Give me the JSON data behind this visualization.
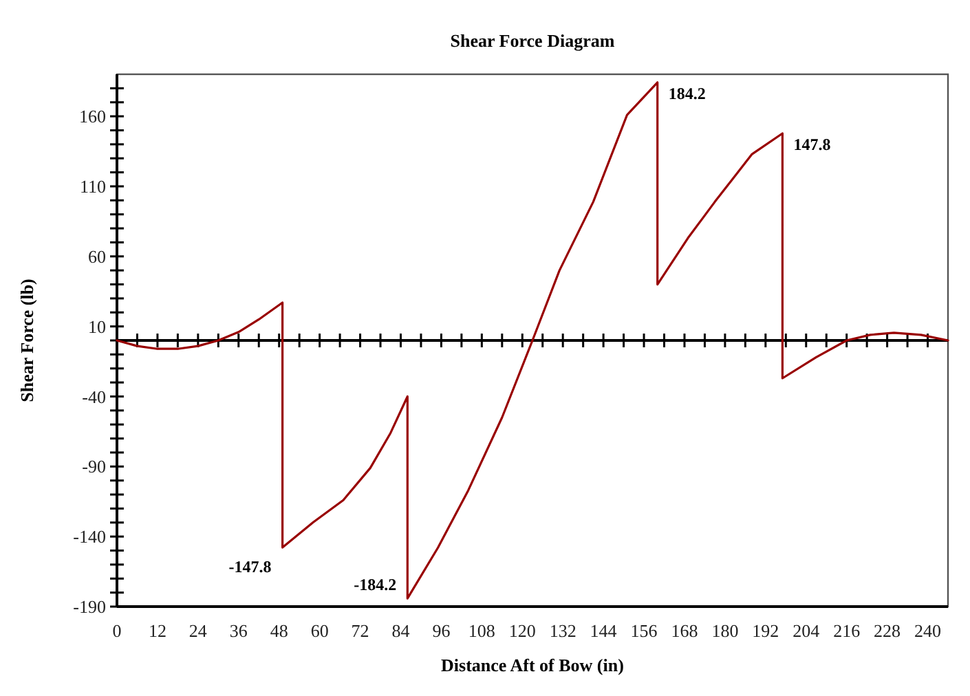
{
  "chart_data": {
    "type": "line",
    "title": "Shear Force Diagram",
    "xlabel": "Distance Aft of Bow (in)",
    "ylabel": "Shear Force (lb)",
    "x": [
      0,
      6,
      12,
      18,
      24,
      30,
      36,
      42,
      49,
      49,
      58,
      67,
      75,
      81,
      86,
      86,
      95,
      104,
      114,
      123,
      131,
      141,
      151,
      160,
      160,
      169,
      177,
      188,
      197,
      197,
      207,
      216,
      223,
      230,
      238,
      246
    ],
    "series": [
      {
        "color": "#990000",
        "values": [
          0,
          -4,
          -6,
          -6,
          -4,
          0,
          6,
          15,
          27,
          -147.8,
          -130,
          -114,
          -91,
          -66,
          -40,
          -184.2,
          -148,
          -107,
          -55,
          0,
          50,
          99,
          161,
          184.2,
          40,
          73,
          99,
          133,
          147.8,
          -27,
          -12,
          0,
          4,
          5.5,
          4,
          0
        ]
      }
    ],
    "xlim": [
      0,
      246
    ],
    "ylim": [
      -190,
      190
    ],
    "xticks": [
      0,
      {
        "value": 6,
        "label": null
      },
      12,
      {
        "value": 18,
        "label": null
      },
      24,
      {
        "value": 30,
        "label": null
      },
      36,
      {
        "value": 42,
        "label": null
      },
      48,
      {
        "value": 54,
        "label": null
      },
      60,
      {
        "value": 66,
        "label": null
      },
      72,
      {
        "value": 78,
        "label": null
      },
      84,
      {
        "value": 90,
        "label": null
      },
      96,
      {
        "value": 102,
        "label": null
      },
      108,
      {
        "value": 114,
        "label": null
      },
      120,
      {
        "value": 126,
        "label": null
      },
      132,
      {
        "value": 138,
        "label": null
      },
      144,
      {
        "value": 150,
        "label": null
      },
      156,
      {
        "value": 162,
        "label": null
      },
      168,
      {
        "value": 174,
        "label": null
      },
      180,
      {
        "value": 186,
        "label": null
      },
      192,
      {
        "value": 198,
        "label": null
      },
      204,
      {
        "value": 210,
        "label": null
      },
      216,
      {
        "value": 222,
        "label": null
      },
      228,
      {
        "value": 234,
        "label": null
      },
      240
    ],
    "yticks": [
      -190,
      {
        "value": -180,
        "label": null
      },
      {
        "value": -170,
        "label": null
      },
      {
        "value": -160,
        "label": null
      },
      {
        "value": -150,
        "label": null
      },
      -140,
      {
        "value": -130,
        "label": null
      },
      {
        "value": -120,
        "label": null
      },
      {
        "value": -110,
        "label": null
      },
      {
        "value": -100,
        "label": null
      },
      -90,
      {
        "value": -80,
        "label": null
      },
      {
        "value": -70,
        "label": null
      },
      {
        "value": -60,
        "label": null
      },
      {
        "value": -50,
        "label": null
      },
      -40,
      {
        "value": -30,
        "label": null
      },
      {
        "value": -20,
        "label": null
      },
      {
        "value": -10,
        "label": null
      },
      {
        "value": 0,
        "label": null
      },
      10,
      {
        "value": 20,
        "label": null
      },
      {
        "value": 30,
        "label": null
      },
      {
        "value": 40,
        "label": null
      },
      {
        "value": 50,
        "label": null
      },
      60,
      {
        "value": 70,
        "label": null
      },
      {
        "value": 80,
        "label": null
      },
      {
        "value": 90,
        "label": null
      },
      {
        "value": 100,
        "label": null
      },
      110,
      {
        "value": 120,
        "label": null
      },
      {
        "value": 130,
        "label": null
      },
      {
        "value": 140,
        "label": null
      },
      {
        "value": 150,
        "label": null
      },
      160,
      {
        "value": 170,
        "label": null
      },
      {
        "value": 180,
        "label": null
      }
    ],
    "annotations": [
      {
        "text": "184.2",
        "x": 160,
        "y": 184.2
      },
      {
        "text": "147.8",
        "x": 197,
        "y": 147.8
      },
      {
        "text": "-147.8",
        "x": 49,
        "y": -147.8
      },
      {
        "text": "-184.2",
        "x": 86,
        "y": -184.2
      }
    ],
    "marker": "none",
    "line_style": "solid"
  }
}
